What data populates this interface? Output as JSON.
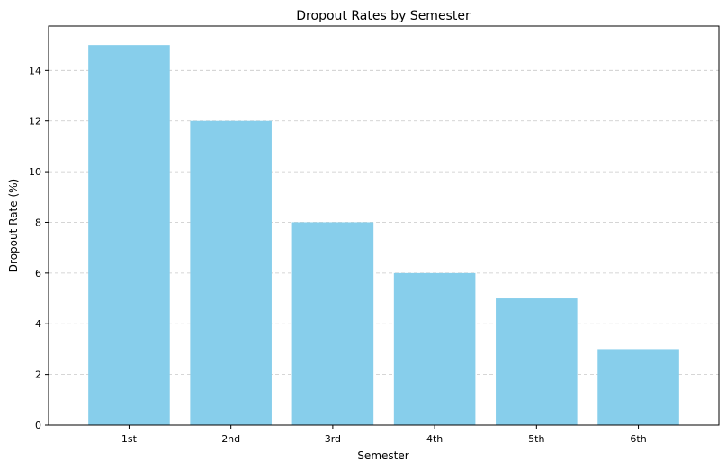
{
  "chart_data": {
    "type": "bar",
    "title": "Dropout Rates by Semester",
    "xlabel": "Semester",
    "ylabel": "Dropout Rate (%)",
    "categories": [
      "1st",
      "2nd",
      "3rd",
      "4th",
      "5th",
      "6th"
    ],
    "values": [
      15,
      12,
      8,
      6,
      5,
      3
    ],
    "ylim": [
      0,
      15.75
    ],
    "yticks": [
      0,
      2,
      4,
      6,
      8,
      10,
      12,
      14
    ],
    "grid": "y-dashed",
    "bar_color": "#87CEEB",
    "grid_color": "#c8c8c8"
  }
}
